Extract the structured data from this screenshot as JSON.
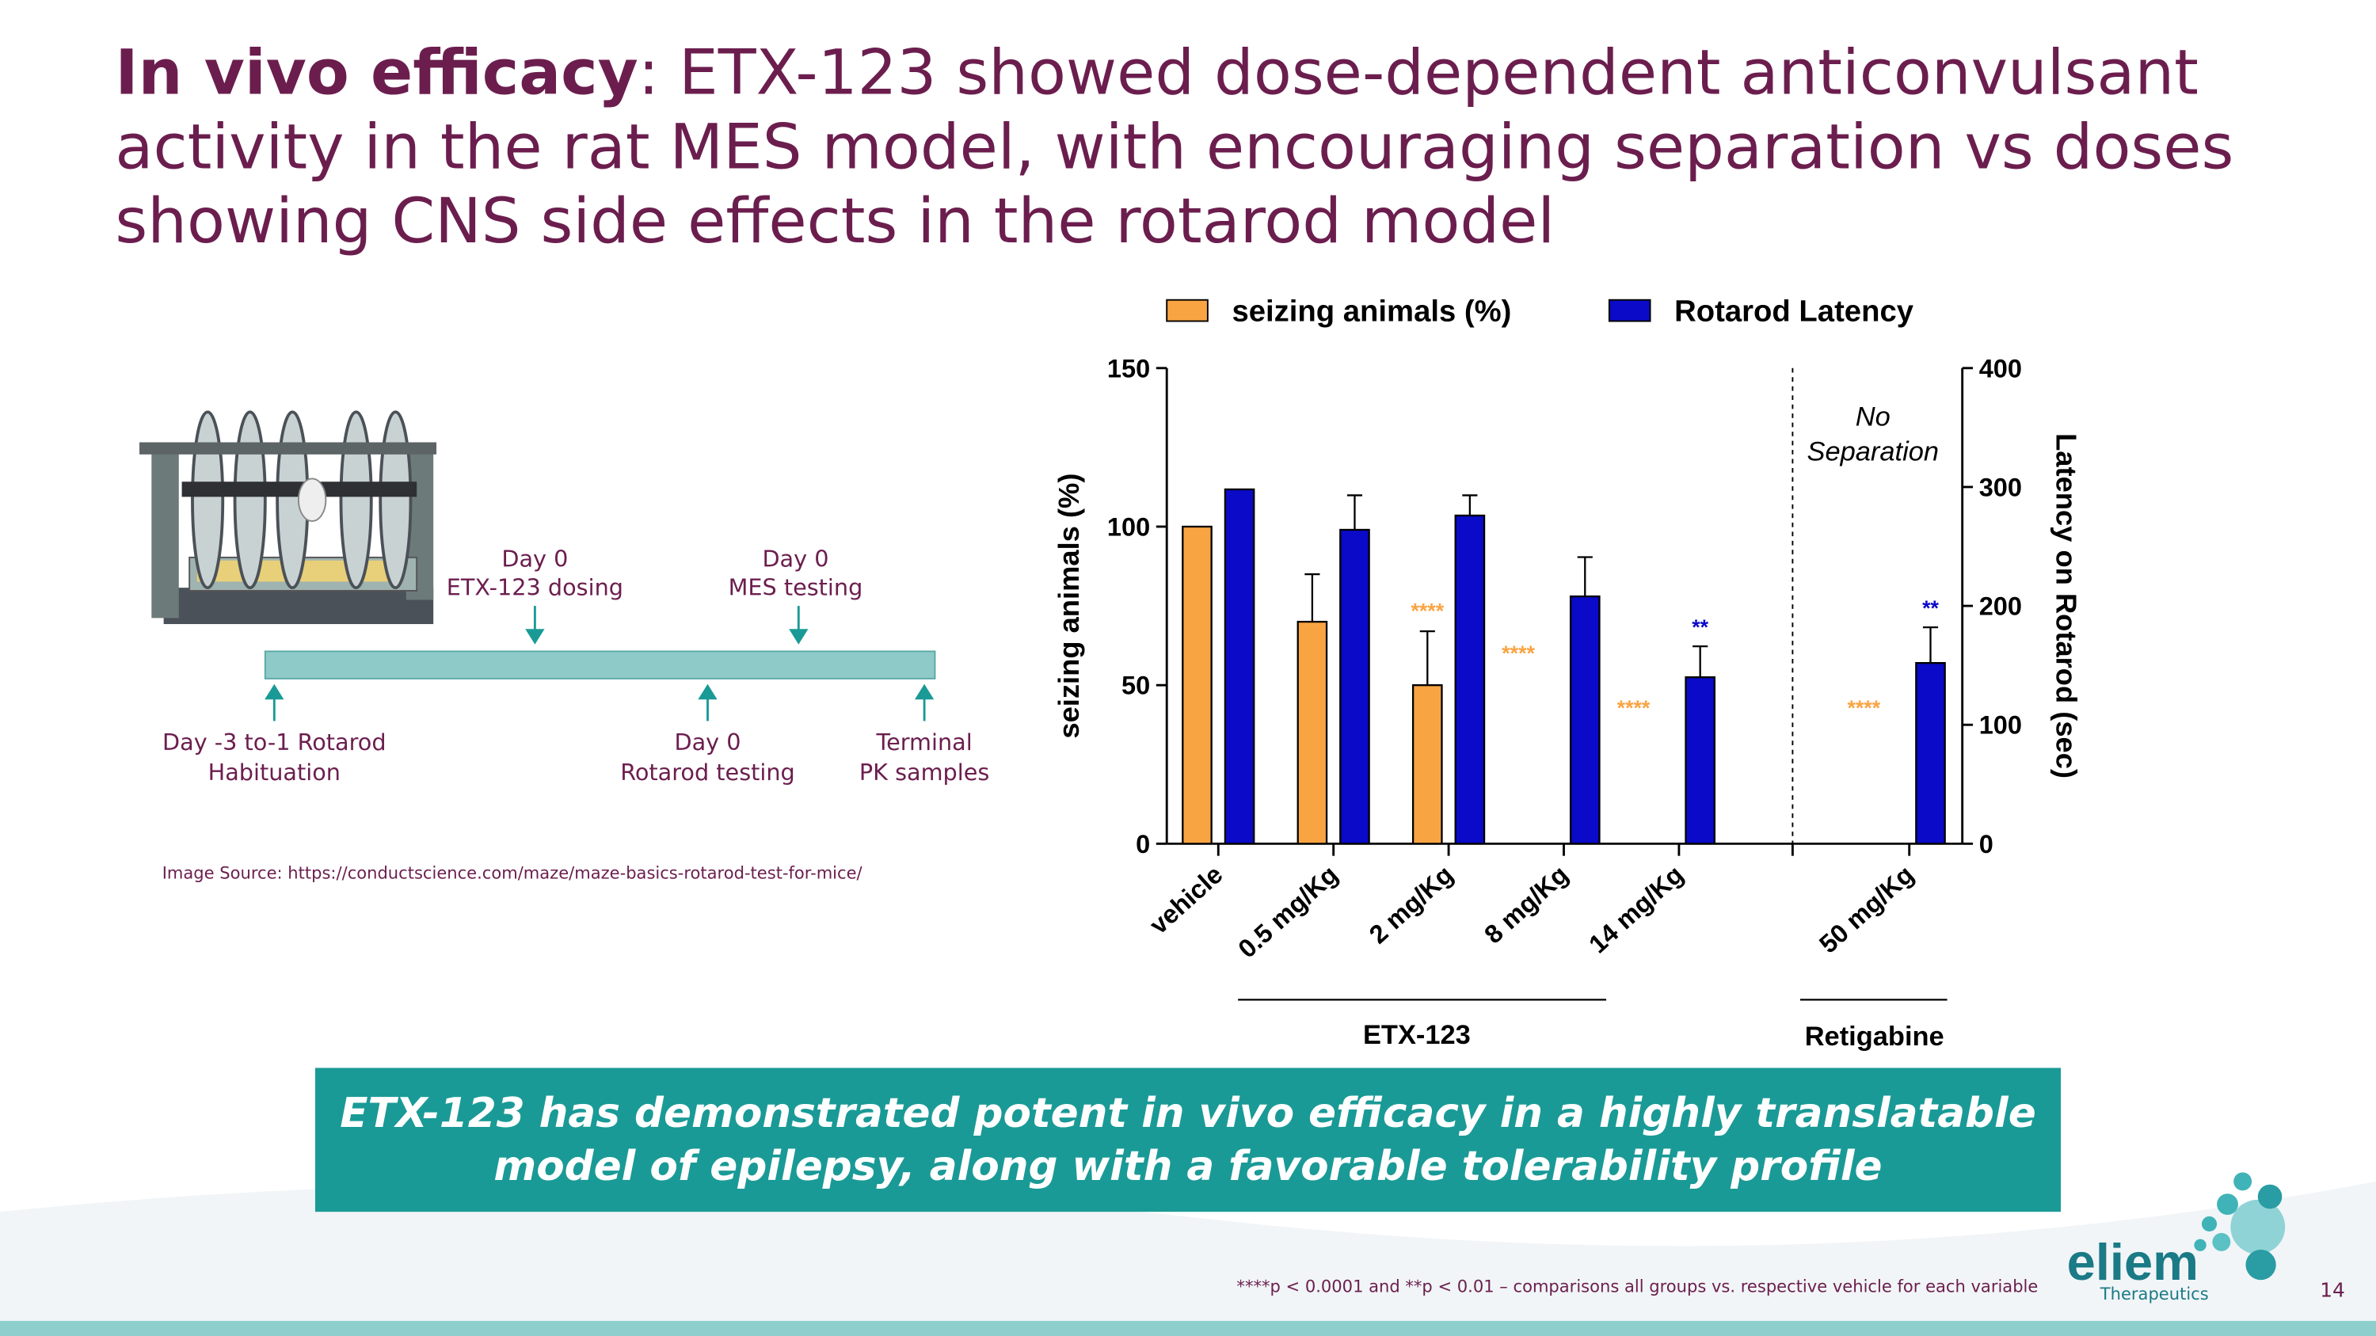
{
  "slide": {
    "title_lead": "In vivo efficacy",
    "title_lines": [
      ": ETX-123 showed dose-dependent anticonvulsant",
      "activity in the rat MES model, with encouraging separation vs doses",
      "showing CNS side effects in the rotarod model"
    ],
    "timeline_above": [
      [
        "Day 0",
        "ETX-123 dosing"
      ],
      [
        "Day 0",
        "MES testing"
      ]
    ],
    "timeline_below": [
      [
        "Day -3 to-1 Rotarod",
        "Habituation"
      ],
      [
        "Day 0",
        "Rotarod testing"
      ],
      [
        "Terminal",
        "PK samples"
      ]
    ],
    "image_source": "Image Source: https://conductscience.com/maze/maze-basics-rotarod-test-for-mice/",
    "callout": [
      "ETX-123 has demonstrated potent in vivo efficacy in a highly translatable",
      "model of epilepsy, along with a favorable tolerability profile"
    ],
    "footnote": "****p < 0.0001 and **p < 0.01 – comparisons all groups vs. respective vehicle for each variable",
    "logo": {
      "name": "eliem",
      "sub": "Therapeutics"
    },
    "page_number": "14"
  },
  "chart_data": {
    "type": "bar",
    "categories": [
      "vehicle",
      "0.5 mg/Kg",
      "2 mg/Kg",
      "8 mg/Kg",
      "14 mg/Kg",
      "50 mg/Kg"
    ],
    "series": [
      {
        "name": "seizing animals (%)",
        "color": "#f9a443",
        "values": [
          100,
          70,
          50,
          0,
          0,
          0
        ],
        "errors": [
          null,
          15,
          17,
          null,
          null,
          null
        ],
        "significance": [
          null,
          null,
          "****",
          "****",
          "****",
          "****"
        ]
      },
      {
        "name": "Rotarod Latency",
        "color": "#0a0ac8",
        "axis": "y2",
        "values": [
          298,
          264,
          276,
          208,
          140,
          152
        ],
        "errors": [
          null,
          29,
          17,
          33,
          26,
          30
        ],
        "significance": [
          null,
          null,
          null,
          null,
          "**",
          "**"
        ]
      }
    ],
    "ylabel": "seizing animals (%)",
    "y2label": "Latency on Rotarod (sec)",
    "ylim": [
      0,
      150
    ],
    "yticks": [
      0,
      50,
      100,
      150
    ],
    "y2lim": [
      0,
      400
    ],
    "y2ticks": [
      0,
      100,
      200,
      300,
      400
    ],
    "groups": [
      "ETX-123",
      "Retigabine"
    ],
    "annotation": [
      "No",
      "Separation"
    ],
    "legend": "top"
  }
}
